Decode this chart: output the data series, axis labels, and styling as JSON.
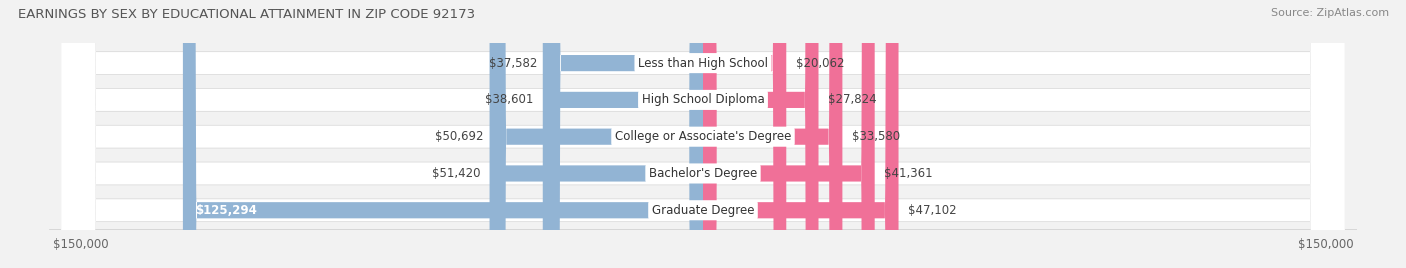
{
  "title": "EARNINGS BY SEX BY EDUCATIONAL ATTAINMENT IN ZIP CODE 92173",
  "source": "Source: ZipAtlas.com",
  "categories": [
    "Less than High School",
    "High School Diploma",
    "College or Associate's Degree",
    "Bachelor's Degree",
    "Graduate Degree"
  ],
  "male_values": [
    37582,
    38601,
    50692,
    51420,
    125294
  ],
  "female_values": [
    20062,
    27824,
    33580,
    41361,
    47102
  ],
  "male_color": "#92b4d4",
  "female_color": "#f07098",
  "axis_max": 150000,
  "background_color": "#f2f2f2",
  "row_bg_color": "#ffffff",
  "row_shadow_color": "#d8d8d8",
  "title_fontsize": 9.5,
  "source_fontsize": 8,
  "label_fontsize": 8.5,
  "value_fontsize": 8.5,
  "tick_fontsize": 8.5
}
